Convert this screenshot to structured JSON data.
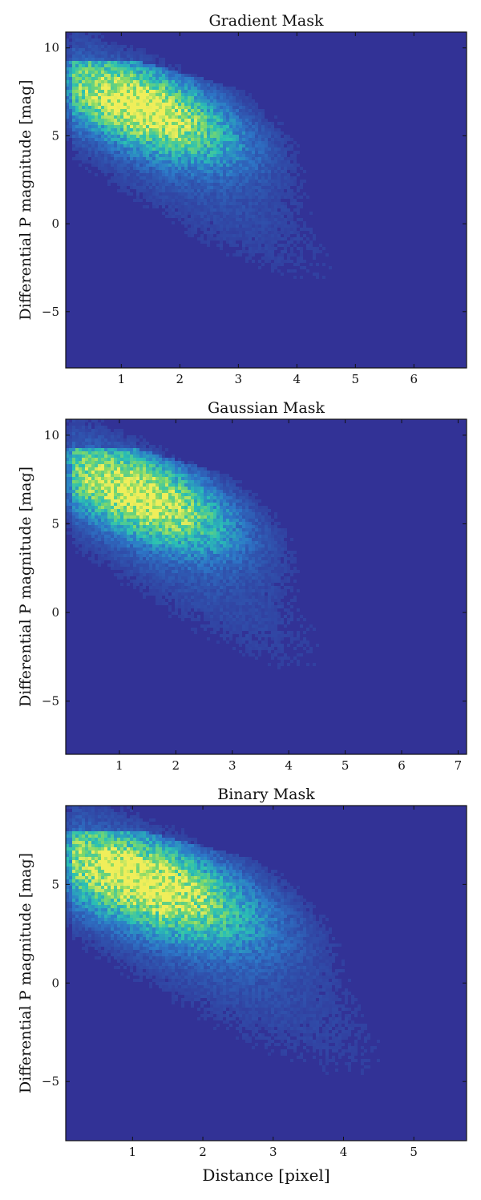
{
  "figure": {
    "xlabel": "Distance [pixel]"
  },
  "chart_data": [
    {
      "type": "heatmap",
      "title": "Gradient Mask",
      "xlabel": "",
      "ylabel": "Differential P magnitude [mag]",
      "xlim": [
        0.05,
        6.9
      ],
      "ylim": [
        -8.2,
        10.9
      ],
      "xticks": [
        1,
        2,
        3,
        4,
        5,
        6
      ],
      "yticks": [
        -5,
        0,
        5,
        10
      ],
      "ytick_labels": [
        "−5",
        "0",
        "5",
        "10"
      ],
      "density_peak": {
        "x": 1.3,
        "y": 6.8
      },
      "colormap": [
        "#323296",
        "#2d78c8",
        "#2ac0b4",
        "#7ed86a",
        "#f0ee5a"
      ]
    },
    {
      "type": "heatmap",
      "title": "Gaussian Mask",
      "xlabel": "",
      "ylabel": "Differential P magnitude [mag]",
      "xlim": [
        0.05,
        7.15
      ],
      "ylim": [
        -8.0,
        10.9
      ],
      "xticks": [
        1,
        2,
        3,
        4,
        5,
        6,
        7
      ],
      "yticks": [
        -5,
        0,
        5,
        10
      ],
      "ytick_labels": [
        "−5",
        "0",
        "5",
        "10"
      ],
      "density_peak": {
        "x": 1.3,
        "y": 6.8
      },
      "colormap": [
        "#323296",
        "#2d78c8",
        "#2ac0b4",
        "#7ed86a",
        "#f0ee5a"
      ]
    },
    {
      "type": "heatmap",
      "title": "Binary Mask",
      "xlabel": "Distance [pixel]",
      "ylabel": "Differential P magnitude [mag]",
      "xlim": [
        0.05,
        5.75
      ],
      "ylim": [
        -8.0,
        9.0
      ],
      "xticks": [
        1,
        2,
        3,
        4,
        5
      ],
      "yticks": [
        -5,
        0,
        5
      ],
      "ytick_labels": [
        "−5",
        "0",
        "5"
      ],
      "density_peak": {
        "x": 1.1,
        "y": 5.3
      },
      "colormap": [
        "#323296",
        "#2d78c8",
        "#2ac0b4",
        "#7ed86a",
        "#f0ee5a"
      ]
    }
  ]
}
